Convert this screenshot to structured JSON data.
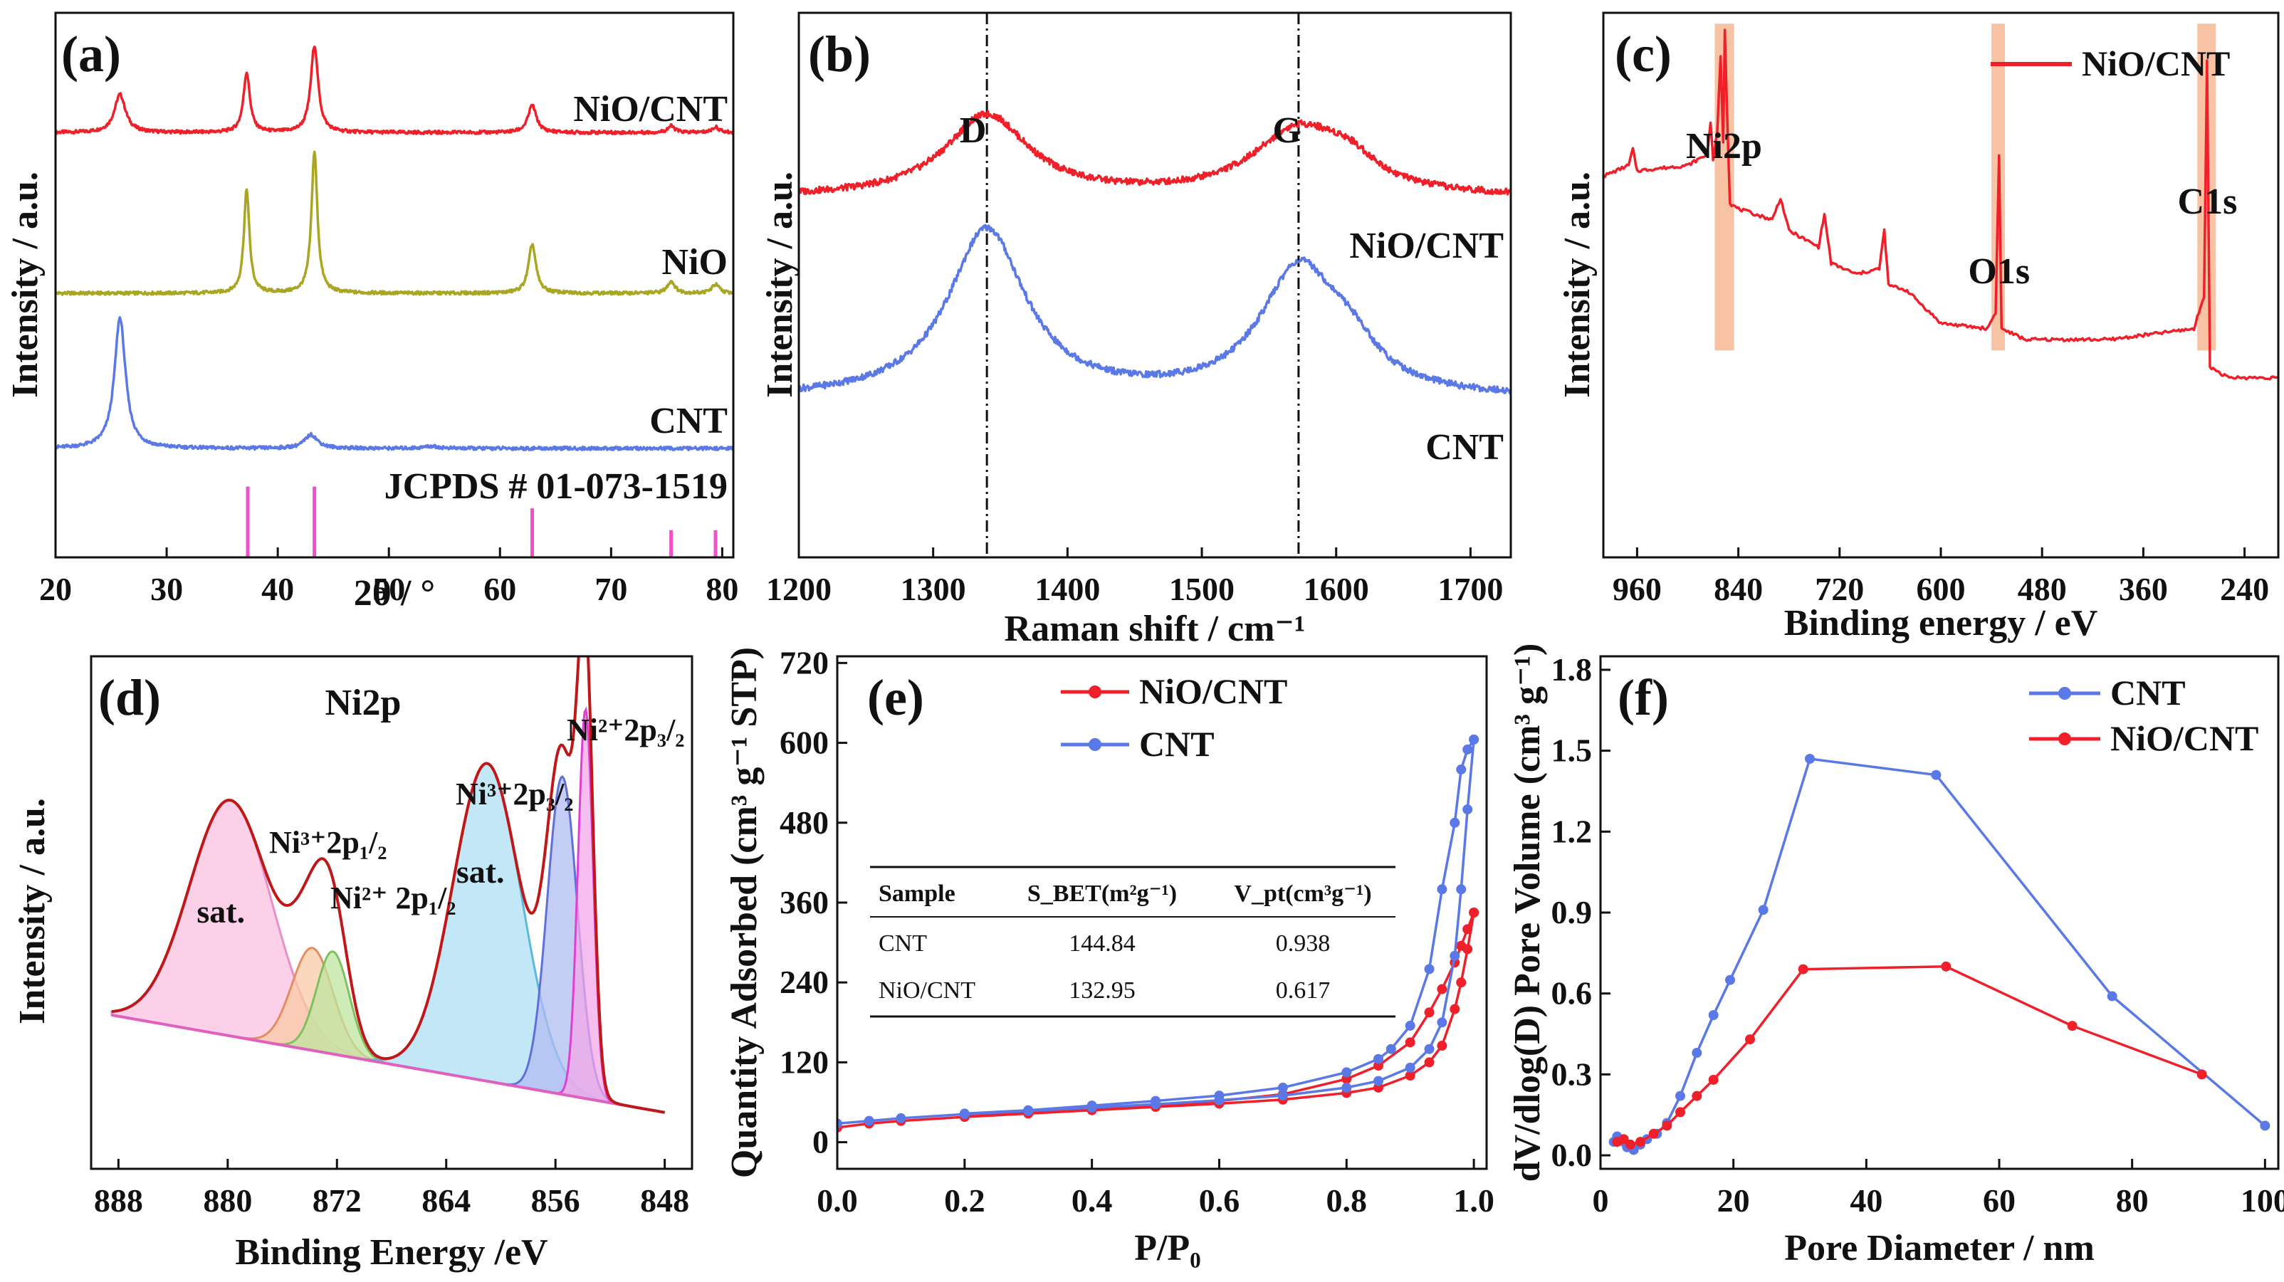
{
  "colors": {
    "red": "#f0202a",
    "blue": "#5a78e6",
    "olive": "#a8a622",
    "pink": "#f050c8",
    "peach": "#f6b894",
    "black": "#111111"
  },
  "chart_data": [
    {
      "id": "a",
      "panel_label": "(a)",
      "type": "line",
      "xlabel": "2θ / °",
      "ylabel": "Intensity / a.u.",
      "xlim": [
        20,
        81
      ],
      "xticks": [
        20,
        30,
        40,
        50,
        60,
        70,
        80
      ],
      "series": [
        {
          "name": "NiO/CNT",
          "label": "NiO/CNT",
          "color": "red",
          "offset": 0.78,
          "peaks": [
            [
              25.8,
              0.07,
              0.6
            ],
            [
              37.2,
              0.11,
              0.35
            ],
            [
              43.3,
              0.16,
              0.4
            ],
            [
              62.9,
              0.05,
              0.45
            ],
            [
              75.4,
              0.012,
              0.4
            ],
            [
              79.4,
              0.01,
              0.4
            ]
          ]
        },
        {
          "name": "NiO",
          "label": "NiO",
          "color": "olive",
          "offset": 0.485,
          "peaks": [
            [
              37.2,
              0.19,
              0.3
            ],
            [
              43.3,
              0.26,
              0.32
            ],
            [
              62.9,
              0.09,
              0.4
            ],
            [
              75.4,
              0.022,
              0.4
            ],
            [
              79.4,
              0.016,
              0.4
            ]
          ]
        },
        {
          "name": "CNT",
          "label": "CNT",
          "color": "blue",
          "offset": 0.2,
          "peaks": [
            [
              25.8,
              0.24,
              0.6
            ],
            [
              43.0,
              0.025,
              0.7
            ],
            [
              53.8,
              0.004,
              0.8
            ]
          ]
        }
      ],
      "reference": {
        "label": "JCPDS # 01-073-1519",
        "positions": [
          37.3,
          43.3,
          62.9,
          75.4,
          79.4
        ],
        "heights": [
          0.13,
          0.13,
          0.09,
          0.05,
          0.05
        ]
      }
    },
    {
      "id": "b",
      "panel_label": "(b)",
      "type": "line",
      "xlabel": "Raman shift / cm⁻¹",
      "ylabel": "Intensity / a.u.",
      "xlim": [
        1200,
        1730
      ],
      "xticks": [
        1200,
        1300,
        1400,
        1500,
        1600,
        1700
      ],
      "vlines": [
        1340,
        1572
      ],
      "peak_labels": [
        {
          "text": "D",
          "x": 1325
        },
        {
          "text": "G",
          "x": 1558
        }
      ],
      "series": [
        {
          "name": "NiO/CNT",
          "label": "NiO/CNT",
          "color": "red",
          "baseline": 0.66,
          "peaks": [
            [
              1340,
              0.15,
              38
            ],
            [
              1572,
              0.12,
              42
            ],
            [
              1610,
              0.04,
              25
            ]
          ]
        },
        {
          "name": "CNT",
          "label": "CNT",
          "color": "blue",
          "baseline": 0.29,
          "peaks": [
            [
              1340,
              0.31,
              35
            ],
            [
              1572,
              0.23,
              35
            ],
            [
              1610,
              0.06,
              25
            ]
          ]
        }
      ]
    },
    {
      "id": "c",
      "panel_label": "(c)",
      "type": "line",
      "xlabel": "Binding energy / eV",
      "ylabel": "Intensity / a.u.",
      "xlim": [
        1000,
        200
      ],
      "xticks": [
        960,
        840,
        720,
        600,
        480,
        360,
        240
      ],
      "legend": [
        "NiO/CNT"
      ],
      "series_name": "NiO/CNT",
      "annotations": [
        {
          "text": "Ni2p",
          "x": 857
        },
        {
          "text": "O1s",
          "x": 531
        },
        {
          "text": "C1s",
          "x": 284
        }
      ],
      "highlights": [
        [
          845,
          868
        ],
        [
          524,
          540
        ],
        [
          274,
          296
        ]
      ],
      "points": [
        [
          1000,
          0.7
        ],
        [
          970,
          0.72
        ],
        [
          965,
          0.75
        ],
        [
          960,
          0.71
        ],
        [
          900,
          0.72
        ],
        [
          877,
          0.74
        ],
        [
          873,
          0.8
        ],
        [
          870,
          0.73
        ],
        [
          865,
          0.78
        ],
        [
          861,
          0.92
        ],
        [
          858,
          0.76
        ],
        [
          856,
          0.97
        ],
        [
          853,
          0.8
        ],
        [
          850,
          0.65
        ],
        [
          840,
          0.64
        ],
        [
          800,
          0.62
        ],
        [
          790,
          0.66
        ],
        [
          780,
          0.6
        ],
        [
          745,
          0.57
        ],
        [
          738,
          0.63
        ],
        [
          730,
          0.54
        ],
        [
          700,
          0.52
        ],
        [
          673,
          0.53
        ],
        [
          667,
          0.6
        ],
        [
          662,
          0.5
        ],
        [
          640,
          0.49
        ],
        [
          600,
          0.43
        ],
        [
          545,
          0.42
        ],
        [
          535,
          0.45
        ],
        [
          531,
          0.74
        ],
        [
          528,
          0.42
        ],
        [
          500,
          0.4
        ],
        [
          400,
          0.4
        ],
        [
          300,
          0.42
        ],
        [
          288,
          0.48
        ],
        [
          284.5,
          0.91
        ],
        [
          281,
          0.35
        ],
        [
          260,
          0.33
        ],
        [
          200,
          0.33
        ]
      ]
    },
    {
      "id": "d",
      "panel_label": "(d)",
      "type": "area",
      "title": "Ni2p",
      "xlabel": "Binding Energy /eV",
      "ylabel": "Intensity / a.u.",
      "xlim": [
        890,
        846
      ],
      "xticks": [
        888,
        880,
        872,
        864,
        856,
        848
      ],
      "components": [
        {
          "label": "sat.",
          "center": 879.8,
          "height": 0.46,
          "width": 3.0,
          "fill": "#f9c0e0",
          "stroke": "#e890c8"
        },
        {
          "label": "Ni³⁺2p₁/₂",
          "center": 873.8,
          "height": 0.2,
          "width": 1.5,
          "fill": "#f9c9a4",
          "stroke": "#e09060"
        },
        {
          "label": "Ni²⁺ 2p₁/₂",
          "center": 872.3,
          "height": 0.2,
          "width": 1.2,
          "fill": "#bfe6a0",
          "stroke": "#80c060"
        },
        {
          "label": "sat.",
          "center": 861.0,
          "height": 0.62,
          "width": 2.5,
          "fill": "#aee0f4",
          "stroke": "#5bb8e0"
        },
        {
          "label": "Ni³⁺2p₃/₂",
          "center": 855.5,
          "height": 0.62,
          "width": 1.1,
          "fill": "#b0bcf0",
          "stroke": "#6070d8"
        },
        {
          "label": "Ni²⁺2p₃/₂",
          "center": 853.8,
          "height": 0.76,
          "width": 0.55,
          "fill": "#f3a8ea",
          "stroke": "#e040d0"
        }
      ],
      "labels": [
        {
          "text": "sat.",
          "x": 880.5,
          "color": "#f070c0"
        },
        {
          "text": "sat.",
          "x": 861.5,
          "color": "#30b8f0"
        }
      ]
    },
    {
      "id": "e",
      "panel_label": "(e)",
      "type": "line",
      "xlabel": "P/P₀",
      "ylabel": "Quantity Adsorbed (cm³ g⁻¹ STP)",
      "xlim": [
        0,
        1.02
      ],
      "ylim": [
        -40,
        730
      ],
      "xticks": [
        0,
        0.2,
        0.4,
        0.6,
        0.8,
        1.0
      ],
      "yticks": [
        0,
        120,
        240,
        360,
        480,
        600,
        720
      ],
      "series": [
        {
          "name": "NiO/CNT",
          "color": "red",
          "adsorption": [
            [
              0.0,
              22
            ],
            [
              0.05,
              28
            ],
            [
              0.1,
              32
            ],
            [
              0.2,
              38
            ],
            [
              0.3,
              43
            ],
            [
              0.4,
              48
            ],
            [
              0.5,
              53
            ],
            [
              0.6,
              58
            ],
            [
              0.7,
              64
            ],
            [
              0.8,
              74
            ],
            [
              0.85,
              82
            ],
            [
              0.9,
              100
            ],
            [
              0.93,
              120
            ],
            [
              0.95,
              145
            ],
            [
              0.97,
              200
            ],
            [
              0.98,
              240
            ],
            [
              0.99,
              290
            ],
            [
              1.0,
              345
            ]
          ],
          "desorption": [
            [
              1.0,
              345
            ],
            [
              0.99,
              320
            ],
            [
              0.98,
              295
            ],
            [
              0.97,
              270
            ],
            [
              0.95,
              230
            ],
            [
              0.93,
              195
            ],
            [
              0.9,
              150
            ],
            [
              0.85,
              115
            ],
            [
              0.8,
              95
            ],
            [
              0.7,
              72
            ],
            [
              0.6,
              62
            ],
            [
              0.5,
              56
            ],
            [
              0.4,
              50
            ],
            [
              0.3,
              45
            ],
            [
              0.2,
              40
            ]
          ]
        },
        {
          "name": "CNT",
          "color": "blue",
          "adsorption": [
            [
              0.0,
              28
            ],
            [
              0.05,
              32
            ],
            [
              0.1,
              36
            ],
            [
              0.2,
              42
            ],
            [
              0.3,
              47
            ],
            [
              0.4,
              52
            ],
            [
              0.5,
              57
            ],
            [
              0.6,
              63
            ],
            [
              0.7,
              70
            ],
            [
              0.8,
              82
            ],
            [
              0.85,
              92
            ],
            [
              0.9,
              112
            ],
            [
              0.93,
              140
            ],
            [
              0.95,
              180
            ],
            [
              0.97,
              280
            ],
            [
              0.98,
              380
            ],
            [
              0.99,
              500
            ],
            [
              1.0,
              605
            ]
          ],
          "desorption": [
            [
              1.0,
              605
            ],
            [
              0.99,
              590
            ],
            [
              0.98,
              560
            ],
            [
              0.97,
              480
            ],
            [
              0.95,
              380
            ],
            [
              0.93,
              260
            ],
            [
              0.9,
              175
            ],
            [
              0.87,
              140
            ],
            [
              0.85,
              125
            ],
            [
              0.8,
              105
            ],
            [
              0.7,
              82
            ],
            [
              0.6,
              70
            ],
            [
              0.5,
              62
            ],
            [
              0.4,
              55
            ],
            [
              0.3,
              48
            ],
            [
              0.2,
              43
            ]
          ]
        }
      ],
      "table": {
        "headers": [
          "Sample",
          "S_BET(m²g⁻¹)",
          "V_pt(cm³g⁻¹)"
        ],
        "rows": [
          [
            "CNT",
            "144.84",
            "0.938"
          ],
          [
            "NiO/CNT",
            "132.95",
            "0.617"
          ]
        ]
      }
    },
    {
      "id": "f",
      "panel_label": "(f)",
      "type": "line",
      "xlabel": "Pore Diameter / nm",
      "ylabel": "dV/dlog(D) Pore Volume (cm³ g⁻¹)",
      "xlim": [
        0,
        102
      ],
      "ylim": [
        -0.05,
        1.85
      ],
      "xticks": [
        0,
        20,
        40,
        60,
        80,
        100
      ],
      "yticks": [
        0.0,
        0.3,
        0.6,
        0.9,
        1.2,
        1.5,
        1.8
      ],
      "series": [
        {
          "name": "CNT",
          "color": "blue",
          "points": [
            [
              2.0,
              0.05
            ],
            [
              2.5,
              0.07
            ],
            [
              3.0,
              0.06
            ],
            [
              3.5,
              0.05
            ],
            [
              4.0,
              0.03
            ],
            [
              5.0,
              0.02
            ],
            [
              6.0,
              0.04
            ],
            [
              7.0,
              0.06
            ],
            [
              8.5,
              0.08
            ],
            [
              10.0,
              0.12
            ],
            [
              12.0,
              0.22
            ],
            [
              14.5,
              0.38
            ],
            [
              17.0,
              0.52
            ],
            [
              19.5,
              0.65
            ],
            [
              24.5,
              0.91
            ],
            [
              31.5,
              1.47
            ],
            [
              50.5,
              1.41
            ],
            [
              77.0,
              0.59
            ],
            [
              100.0,
              0.11
            ]
          ]
        },
        {
          "name": "NiO/CNT",
          "color": "red",
          "points": [
            [
              2.5,
              0.05
            ],
            [
              3.5,
              0.06
            ],
            [
              4.5,
              0.04
            ],
            [
              6.0,
              0.05
            ],
            [
              8.0,
              0.08
            ],
            [
              10.0,
              0.11
            ],
            [
              12.0,
              0.16
            ],
            [
              14.5,
              0.22
            ],
            [
              17.0,
              0.28
            ],
            [
              22.5,
              0.43
            ],
            [
              30.5,
              0.69
            ],
            [
              52.0,
              0.7
            ],
            [
              71.0,
              0.48
            ],
            [
              90.5,
              0.3
            ]
          ]
        }
      ]
    }
  ]
}
